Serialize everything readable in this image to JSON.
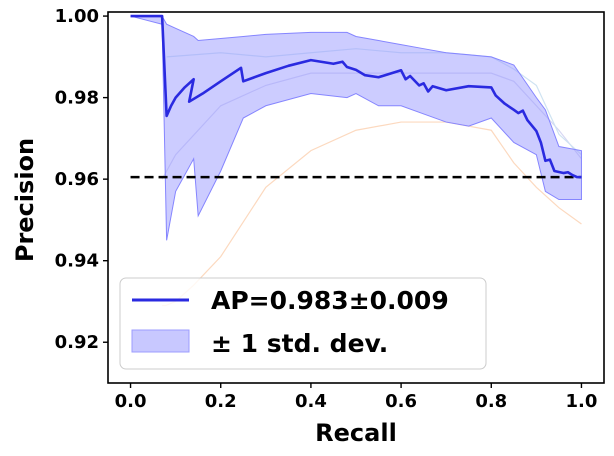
{
  "chart_data": {
    "type": "line",
    "xlabel": "Recall",
    "ylabel": "Precision",
    "xlim": [
      -0.05,
      1.05
    ],
    "ylim": [
      0.91,
      1.001
    ],
    "xticks": [
      "0.0",
      "0.2",
      "0.4",
      "0.6",
      "0.8",
      "1.0"
    ],
    "xtick_values": [
      0.0,
      0.2,
      0.4,
      0.6,
      0.8,
      1.0
    ],
    "yticks": [
      "0.92",
      "0.94",
      "0.96",
      "0.98",
      "1.00"
    ],
    "ytick_values": [
      0.92,
      0.94,
      0.96,
      0.98,
      1.0
    ],
    "grid": false,
    "legend_position": "lower-left",
    "baseline": {
      "y": 0.9605,
      "x_range": [
        0.0,
        1.0
      ],
      "style": "dashed",
      "color": "#000000"
    },
    "series": [
      {
        "name": "AP=0.983±0.009",
        "color": "#2a2ae0",
        "x": [
          0.0,
          0.07,
          0.08,
          0.09,
          0.1,
          0.12,
          0.14,
          0.13,
          0.16,
          0.2,
          0.245,
          0.25,
          0.3,
          0.35,
          0.4,
          0.45,
          0.47,
          0.48,
          0.5,
          0.52,
          0.55,
          0.6,
          0.61,
          0.62,
          0.64,
          0.65,
          0.66,
          0.67,
          0.7,
          0.75,
          0.8,
          0.81,
          0.83,
          0.85,
          0.86,
          0.87,
          0.88,
          0.9,
          0.91,
          0.92,
          0.93,
          0.94,
          0.96,
          0.97,
          0.98,
          0.99,
          1.0
        ],
        "y": [
          1.0,
          1.0,
          0.9755,
          0.978,
          0.98,
          0.9825,
          0.9845,
          0.979,
          0.981,
          0.984,
          0.9873,
          0.984,
          0.986,
          0.9878,
          0.9892,
          0.9883,
          0.9888,
          0.9875,
          0.9868,
          0.9855,
          0.985,
          0.9867,
          0.9845,
          0.9853,
          0.983,
          0.9835,
          0.9815,
          0.9828,
          0.9818,
          0.9828,
          0.9825,
          0.9805,
          0.9785,
          0.977,
          0.9762,
          0.9768,
          0.9745,
          0.9718,
          0.969,
          0.9645,
          0.9648,
          0.962,
          0.9615,
          0.9617,
          0.961,
          0.9605,
          0.9605
        ]
      },
      {
        "name": "± 1 std. dev.",
        "color": "#8f8fff",
        "type": "band",
        "x": [
          0.0,
          0.07,
          0.08,
          0.1,
          0.14,
          0.15,
          0.2,
          0.25,
          0.3,
          0.4,
          0.48,
          0.5,
          0.55,
          0.6,
          0.65,
          0.7,
          0.75,
          0.8,
          0.85,
          0.9,
          0.92,
          0.95,
          1.0
        ],
        "upper": [
          1.0,
          1.0,
          0.998,
          0.997,
          0.995,
          0.994,
          0.9945,
          0.995,
          0.9955,
          0.996,
          0.996,
          0.995,
          0.994,
          0.993,
          0.992,
          0.991,
          0.9905,
          0.99,
          0.988,
          0.98,
          0.977,
          0.968,
          0.967
        ],
        "lower": [
          1.0,
          0.998,
          0.945,
          0.957,
          0.965,
          0.951,
          0.962,
          0.975,
          0.978,
          0.981,
          0.98,
          0.981,
          0.978,
          0.978,
          0.976,
          0.974,
          0.973,
          0.975,
          0.969,
          0.966,
          0.957,
          0.955,
          0.955
        ]
      },
      {
        "color": "#fcd9bf",
        "x": [
          0.07,
          0.078,
          0.1,
          0.14,
          0.2,
          0.3,
          0.4,
          0.5,
          0.6,
          0.7,
          0.8,
          0.85,
          0.9,
          0.95,
          1.0
        ],
        "y": [
          0.929,
          0.929,
          0.93,
          0.934,
          0.941,
          0.958,
          0.967,
          0.972,
          0.974,
          0.974,
          0.972,
          0.964,
          0.958,
          0.953,
          0.949
        ]
      },
      {
        "color": "#d7d7f3",
        "x": [
          0.07,
          0.1,
          0.2,
          0.3,
          0.4,
          0.5,
          0.6,
          0.7,
          0.8,
          0.85,
          0.9,
          0.95,
          1.0
        ],
        "y": [
          0.96,
          0.966,
          0.978,
          0.983,
          0.986,
          0.986,
          0.986,
          0.986,
          0.986,
          0.984,
          0.978,
          0.972,
          0.965
        ]
      },
      {
        "color": "#cfe3f2",
        "x": [
          0.08,
          0.2,
          0.3,
          0.4,
          0.5,
          0.6,
          0.7,
          0.8,
          0.85,
          0.9,
          0.95,
          1.0
        ],
        "y": [
          0.99,
          0.991,
          0.99,
          0.991,
          0.992,
          0.991,
          0.991,
          0.99,
          0.987,
          0.983,
          0.971,
          0.966
        ]
      }
    ],
    "legend": [
      {
        "label": "AP=0.983±0.009",
        "kind": "line",
        "color": "#2a2ae0"
      },
      {
        "label": "± 1 std. dev.",
        "kind": "patch",
        "color": "#c8c8ff"
      }
    ]
  }
}
